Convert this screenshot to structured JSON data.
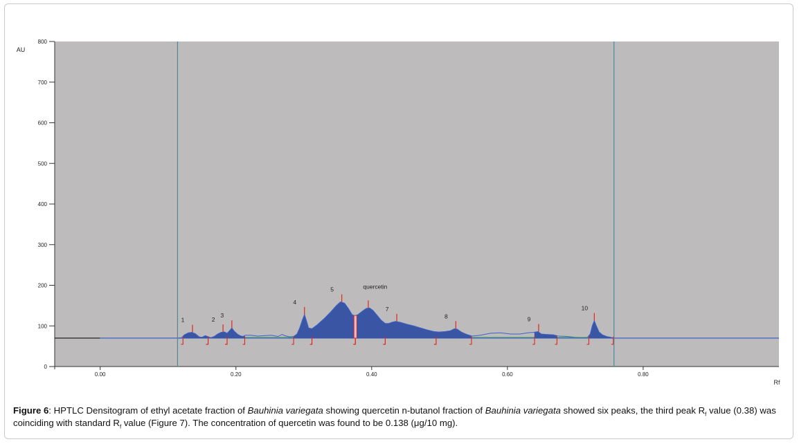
{
  "chart_data": {
    "type": "area",
    "ylabel": "AU",
    "xlabel": "Rf",
    "xlim": [
      -0.067,
      1.0
    ],
    "ylim": [
      0,
      800
    ],
    "x_ticks": [
      {
        "value": 0.0,
        "label": "0.00"
      },
      {
        "value": 0.2,
        "label": "0.20"
      },
      {
        "value": 0.4,
        "label": "0.40"
      },
      {
        "value": 0.6,
        "label": "0.60"
      },
      {
        "value": 0.8,
        "label": "0.80"
      }
    ],
    "y_ticks": [
      {
        "value": 0,
        "label": "0"
      },
      {
        "value": 100,
        "label": "100"
      },
      {
        "value": 200,
        "label": "200"
      },
      {
        "value": 300,
        "label": "300"
      },
      {
        "value": 400,
        "label": "400"
      },
      {
        "value": 500,
        "label": "500"
      },
      {
        "value": 600,
        "label": "600"
      },
      {
        "value": 700,
        "label": "700"
      },
      {
        "value": 800,
        "label": "800"
      }
    ],
    "baseline_au": 70,
    "track_start_rf": 0.114,
    "track_end_rf": 0.757,
    "trace": [
      [
        0.114,
        70
      ],
      [
        0.12,
        71
      ],
      [
        0.124,
        78
      ],
      [
        0.13,
        83
      ],
      [
        0.135,
        84
      ],
      [
        0.14,
        81
      ],
      [
        0.146,
        73
      ],
      [
        0.15,
        72
      ],
      [
        0.155,
        76
      ],
      [
        0.158,
        74
      ],
      [
        0.163,
        71
      ],
      [
        0.168,
        74
      ],
      [
        0.173,
        80
      ],
      [
        0.178,
        84
      ],
      [
        0.183,
        85
      ],
      [
        0.187,
        82
      ],
      [
        0.19,
        87
      ],
      [
        0.194,
        95
      ],
      [
        0.197,
        88
      ],
      [
        0.202,
        80
      ],
      [
        0.206,
        76
      ],
      [
        0.21,
        74
      ],
      [
        0.214,
        77
      ],
      [
        0.222,
        77
      ],
      [
        0.232,
        75
      ],
      [
        0.242,
        76
      ],
      [
        0.252,
        77
      ],
      [
        0.262,
        74
      ],
      [
        0.268,
        79
      ],
      [
        0.272,
        76
      ],
      [
        0.279,
        73
      ],
      [
        0.285,
        74
      ],
      [
        0.29,
        80
      ],
      [
        0.294,
        95
      ],
      [
        0.298,
        115
      ],
      [
        0.301,
        128
      ],
      [
        0.304,
        112
      ],
      [
        0.307,
        95
      ],
      [
        0.312,
        93
      ],
      [
        0.32,
        103
      ],
      [
        0.33,
        118
      ],
      [
        0.34,
        135
      ],
      [
        0.348,
        150
      ],
      [
        0.354,
        159
      ],
      [
        0.36,
        156
      ],
      [
        0.366,
        142
      ],
      [
        0.371,
        128
      ],
      [
        0.375,
        125
      ],
      [
        0.38,
        128
      ],
      [
        0.386,
        136
      ],
      [
        0.392,
        143
      ],
      [
        0.397,
        144
      ],
      [
        0.402,
        138
      ],
      [
        0.408,
        126
      ],
      [
        0.414,
        114
      ],
      [
        0.42,
        106
      ],
      [
        0.425,
        106
      ],
      [
        0.43,
        109
      ],
      [
        0.435,
        111
      ],
      [
        0.442,
        109
      ],
      [
        0.452,
        104
      ],
      [
        0.462,
        100
      ],
      [
        0.472,
        95
      ],
      [
        0.482,
        90
      ],
      [
        0.492,
        86
      ],
      [
        0.5,
        85
      ],
      [
        0.508,
        86
      ],
      [
        0.516,
        88
      ],
      [
        0.522,
        93
      ],
      [
        0.526,
        92
      ],
      [
        0.532,
        85
      ],
      [
        0.54,
        79
      ],
      [
        0.548,
        75
      ],
      [
        0.56,
        77
      ],
      [
        0.575,
        82
      ],
      [
        0.59,
        83
      ],
      [
        0.605,
        80
      ],
      [
        0.618,
        80
      ],
      [
        0.63,
        83
      ],
      [
        0.638,
        84
      ],
      [
        0.645,
        86
      ],
      [
        0.65,
        80
      ],
      [
        0.658,
        79
      ],
      [
        0.668,
        78
      ],
      [
        0.675,
        75
      ],
      [
        0.688,
        74
      ],
      [
        0.7,
        72
      ],
      [
        0.712,
        71
      ],
      [
        0.718,
        72
      ],
      [
        0.722,
        80
      ],
      [
        0.725,
        100
      ],
      [
        0.728,
        113
      ],
      [
        0.731,
        100
      ],
      [
        0.735,
        85
      ],
      [
        0.74,
        78
      ],
      [
        0.746,
        74
      ],
      [
        0.752,
        72
      ],
      [
        0.757,
        70
      ]
    ],
    "peaks": [
      {
        "label": "1",
        "rf": 0.136,
        "au": 84,
        "start": 0.122,
        "end": 0.159
      },
      {
        "label": "2",
        "rf": 0.181,
        "au": 85,
        "start": 0.159,
        "end": 0.187
      },
      {
        "label": "3",
        "rf": 0.194,
        "au": 95,
        "start": 0.187,
        "end": 0.213
      },
      {
        "label": "4",
        "rf": 0.301,
        "au": 128,
        "start": 0.285,
        "end": 0.312
      },
      {
        "label": "5",
        "rf": 0.356,
        "au": 159,
        "start": 0.312,
        "end": 0.376
      },
      {
        "label": "quercetin",
        "rf": 0.395,
        "au": 144,
        "start": 0.376,
        "end": 0.42
      },
      {
        "label": "7",
        "rf": 0.437,
        "au": 111,
        "start": 0.42,
        "end": 0.495
      },
      {
        "label": "8",
        "rf": 0.524,
        "au": 93,
        "start": 0.495,
        "end": 0.547
      },
      {
        "label": "9",
        "rf": 0.646,
        "au": 86,
        "start": 0.64,
        "end": 0.673
      },
      {
        "label": "10",
        "rf": 0.728,
        "au": 113,
        "start": 0.72,
        "end": 0.756
      }
    ],
    "colors": {
      "plot_bg": "#bdbbbc",
      "fill": "#3a55a4",
      "baseline": "#3a62c6",
      "track_line": "#4a8a9a",
      "marker": "#e0251c",
      "green_line": "#3e9b58"
    },
    "grid": false
  },
  "caption": {
    "label": "Figure 6",
    "t1": ": HPTLC Densitogram of ethyl acetate fraction of ",
    "i1": "Bauhinia variegata",
    "t2": " showing quercetin n-butanol fraction of ",
    "i2": "Bauhinia variegata",
    "t3": " showed six peaks, the third peak R",
    "sub1": "f",
    "t4": " value (0.38) was coinciding with standard R",
    "sub2": "f",
    "t5": " value (Figure 7). The concentration of quercetin was found to be 0.138 (μg/10 mg)."
  }
}
